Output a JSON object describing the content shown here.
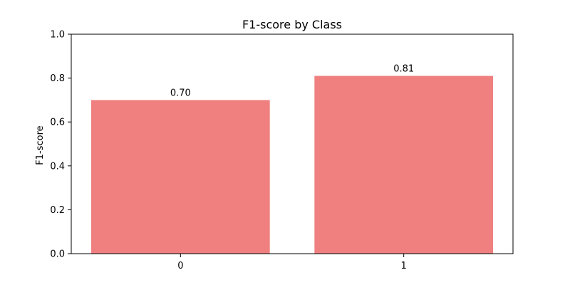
{
  "chart_data": {
    "type": "bar",
    "title": "F1-score by Class",
    "xlabel": "",
    "ylabel": "F1-score",
    "categories": [
      "0",
      "1"
    ],
    "values": [
      0.7,
      0.81
    ],
    "value_labels": [
      "0.70",
      "0.81"
    ],
    "ylim": [
      0.0,
      1.0
    ],
    "yticks": [
      0.0,
      0.2,
      0.4,
      0.6,
      0.8,
      1.0
    ],
    "ytick_labels": [
      "0.0",
      "0.2",
      "0.4",
      "0.6",
      "0.8",
      "1.0"
    ],
    "grid": false,
    "bar_color": "#f08080"
  }
}
